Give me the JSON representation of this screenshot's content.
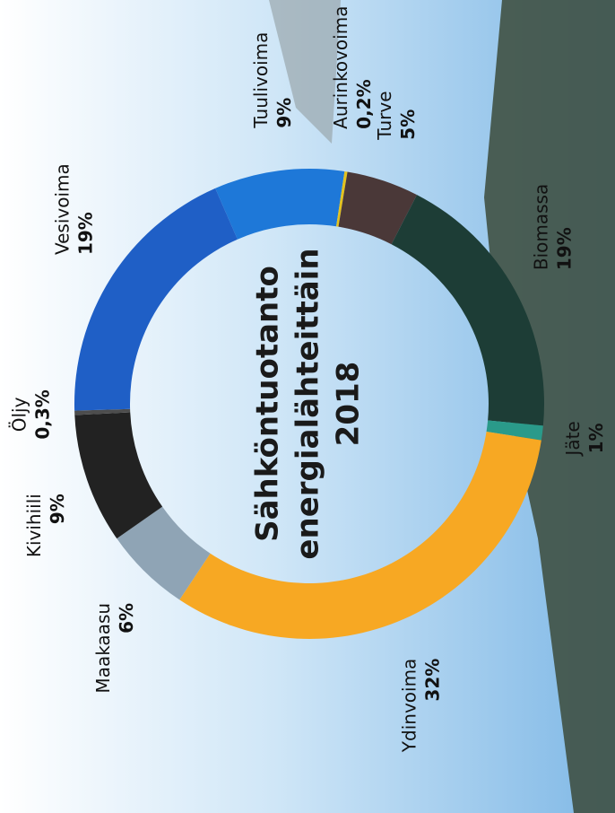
{
  "chart_data": {
    "type": "donut",
    "title": [
      "Sähköntuotanto",
      "energialähteittäin",
      "2018"
    ],
    "categories": [
      "Tuulivoima",
      "Aurinkovoima",
      "Turve",
      "Biomassa",
      "Jäte",
      "Ydinvoima",
      "Maakaasu",
      "Kivihiili",
      "Öljy",
      "Vesivoima"
    ],
    "values": [
      9,
      0.2,
      5,
      19,
      1,
      32,
      6,
      9,
      0.3,
      19
    ],
    "value_labels": [
      "9%",
      "0,2%",
      "5%",
      "19%",
      "1%",
      "32%",
      "6%",
      "9%",
      "0,3%",
      "19%"
    ],
    "colors": [
      "#1e78d8",
      "#e3c21e",
      "#4a3838",
      "#1d3d36",
      "#2a9a8a",
      "#f7a823",
      "#8fa4b5",
      "#222222",
      "#4d4d4d",
      "#1f5fc6"
    ]
  }
}
